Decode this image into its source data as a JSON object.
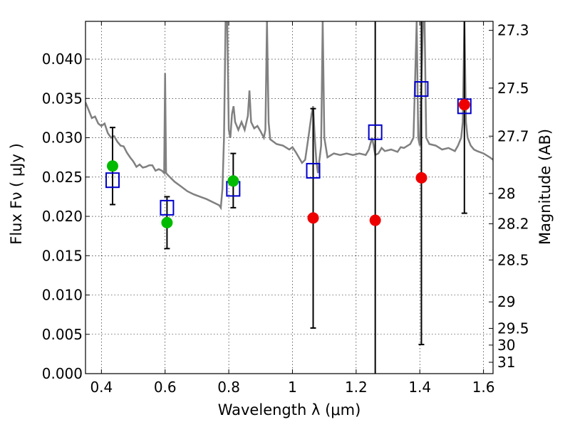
{
  "chart_data": {
    "type": "scatter",
    "xlabel": "Wavelength  λ (μm)",
    "ylabel": "Flux  Fν  ( μJy )",
    "y2label": "Magnitude (AB)",
    "xlim": [
      0.35,
      1.63
    ],
    "ylim": [
      0.0,
      0.0448
    ],
    "grid": true,
    "x_ticks": [
      {
        "value": 0.4,
        "label": "0.4"
      },
      {
        "value": 0.6,
        "label": "0.6"
      },
      {
        "value": 0.8,
        "label": "0.8"
      },
      {
        "value": 1.0,
        "label": "1"
      },
      {
        "value": 1.2,
        "label": "1.2"
      },
      {
        "value": 1.4,
        "label": "1.4"
      },
      {
        "value": 1.6,
        "label": "1.6"
      }
    ],
    "y_ticks": [
      {
        "value": 0.0,
        "label": "0.000"
      },
      {
        "value": 0.005,
        "label": "0.005"
      },
      {
        "value": 0.01,
        "label": "0.010"
      },
      {
        "value": 0.015,
        "label": "0.015"
      },
      {
        "value": 0.02,
        "label": "0.020"
      },
      {
        "value": 0.025,
        "label": "0.025"
      },
      {
        "value": 0.03,
        "label": "0.030"
      },
      {
        "value": 0.035,
        "label": "0.035"
      },
      {
        "value": 0.04,
        "label": "0.040"
      }
    ],
    "y2_ticks": [
      {
        "value": 27.3,
        "label": "27.3"
      },
      {
        "value": 27.5,
        "label": "27.5"
      },
      {
        "value": 27.7,
        "label": "27.7"
      },
      {
        "value": 28,
        "label": "28"
      },
      {
        "value": 28.2,
        "label": "28.2"
      },
      {
        "value": 28.5,
        "label": "28.5"
      },
      {
        "value": 29,
        "label": "29"
      },
      {
        "value": 29.5,
        "label": "29.5"
      },
      {
        "value": 30,
        "label": "30"
      },
      {
        "value": 31,
        "label": "31"
      }
    ],
    "colors": {
      "spectrum": "#808080",
      "model": "#0000cc",
      "observed_optical": "#00bb00",
      "observed_nir": "#ee0000",
      "errorbar": "#000000"
    },
    "series": [
      {
        "kind": "line",
        "points": [
          [
            0.35,
            0.0345
          ],
          [
            0.36,
            0.0335
          ],
          [
            0.37,
            0.0325
          ],
          [
            0.38,
            0.0327
          ],
          [
            0.39,
            0.0318
          ],
          [
            0.4,
            0.0315
          ],
          [
            0.41,
            0.0318
          ],
          [
            0.42,
            0.0306
          ],
          [
            0.43,
            0.03
          ],
          [
            0.44,
            0.0302
          ],
          [
            0.45,
            0.0295
          ],
          [
            0.46,
            0.029
          ],
          [
            0.47,
            0.0289
          ],
          [
            0.48,
            0.0281
          ],
          [
            0.49,
            0.0275
          ],
          [
            0.5,
            0.027
          ],
          [
            0.51,
            0.0263
          ],
          [
            0.52,
            0.0266
          ],
          [
            0.53,
            0.0262
          ],
          [
            0.54,
            0.0263
          ],
          [
            0.55,
            0.0265
          ],
          [
            0.56,
            0.0265
          ],
          [
            0.57,
            0.0258
          ],
          [
            0.58,
            0.026
          ],
          [
            0.59,
            0.0258
          ],
          [
            0.597,
            0.0255
          ],
          [
            0.6,
            0.0382
          ],
          [
            0.603,
            0.0255
          ],
          [
            0.61,
            0.0252
          ],
          [
            0.63,
            0.0244
          ],
          [
            0.65,
            0.0238
          ],
          [
            0.67,
            0.0232
          ],
          [
            0.69,
            0.0228
          ],
          [
            0.71,
            0.0225
          ],
          [
            0.73,
            0.0222
          ],
          [
            0.75,
            0.0218
          ],
          [
            0.76,
            0.0216
          ],
          [
            0.77,
            0.0214
          ],
          [
            0.775,
            0.0211
          ],
          [
            0.78,
            0.0235
          ],
          [
            0.785,
            0.03
          ],
          [
            0.79,
            0.0448
          ],
          [
            0.795,
            0.0448
          ],
          [
            0.8,
            0.031
          ],
          [
            0.805,
            0.03
          ],
          [
            0.81,
            0.033
          ],
          [
            0.815,
            0.034
          ],
          [
            0.82,
            0.032
          ],
          [
            0.83,
            0.031
          ],
          [
            0.84,
            0.032
          ],
          [
            0.85,
            0.031
          ],
          [
            0.86,
            0.0328
          ],
          [
            0.865,
            0.036
          ],
          [
            0.87,
            0.032
          ],
          [
            0.88,
            0.0312
          ],
          [
            0.89,
            0.0315
          ],
          [
            0.9,
            0.0308
          ],
          [
            0.91,
            0.03
          ],
          [
            0.915,
            0.031
          ],
          [
            0.92,
            0.0448
          ],
          [
            0.925,
            0.032
          ],
          [
            0.93,
            0.0298
          ],
          [
            0.95,
            0.0292
          ],
          [
            0.97,
            0.029
          ],
          [
            0.99,
            0.0285
          ],
          [
            1.0,
            0.0288
          ],
          [
            1.01,
            0.0282
          ],
          [
            1.02,
            0.0275
          ],
          [
            1.03,
            0.0268
          ],
          [
            1.04,
            0.0272
          ],
          [
            1.05,
            0.03
          ],
          [
            1.06,
            0.033
          ],
          [
            1.065,
            0.034
          ],
          [
            1.07,
            0.03
          ],
          [
            1.075,
            0.027
          ],
          [
            1.08,
            0.0255
          ],
          [
            1.09,
            0.029
          ],
          [
            1.095,
            0.0448
          ],
          [
            1.1,
            0.03
          ],
          [
            1.11,
            0.0275
          ],
          [
            1.13,
            0.028
          ],
          [
            1.15,
            0.0278
          ],
          [
            1.17,
            0.028
          ],
          [
            1.19,
            0.0278
          ],
          [
            1.21,
            0.028
          ],
          [
            1.23,
            0.0278
          ],
          [
            1.24,
            0.0285
          ],
          [
            1.25,
            0.03
          ],
          [
            1.255,
            0.029
          ],
          [
            1.26,
            0.0278
          ],
          [
            1.27,
            0.028
          ],
          [
            1.28,
            0.0287
          ],
          [
            1.29,
            0.0283
          ],
          [
            1.31,
            0.0285
          ],
          [
            1.33,
            0.0282
          ],
          [
            1.34,
            0.0288
          ],
          [
            1.35,
            0.0287
          ],
          [
            1.37,
            0.0292
          ],
          [
            1.38,
            0.03
          ],
          [
            1.385,
            0.037
          ],
          [
            1.39,
            0.0448
          ],
          [
            1.395,
            0.03
          ],
          [
            1.4,
            0.029
          ],
          [
            1.41,
            0.0448
          ],
          [
            1.415,
            0.0448
          ],
          [
            1.42,
            0.03
          ],
          [
            1.43,
            0.0292
          ],
          [
            1.45,
            0.029
          ],
          [
            1.47,
            0.0285
          ],
          [
            1.49,
            0.0287
          ],
          [
            1.51,
            0.0283
          ],
          [
            1.52,
            0.029
          ],
          [
            1.53,
            0.03
          ],
          [
            1.535,
            0.032
          ],
          [
            1.54,
            0.0448
          ],
          [
            1.545,
            0.032
          ],
          [
            1.55,
            0.03
          ],
          [
            1.56,
            0.029
          ],
          [
            1.57,
            0.0285
          ],
          [
            1.58,
            0.0283
          ],
          [
            1.6,
            0.028
          ],
          [
            1.62,
            0.0275
          ],
          [
            1.63,
            0.0272
          ]
        ]
      },
      {
        "kind": "model-squares",
        "points": [
          [
            0.435,
            0.0246
          ],
          [
            0.606,
            0.0211
          ],
          [
            0.814,
            0.0235
          ],
          [
            1.065,
            0.0258
          ],
          [
            1.26,
            0.0307
          ],
          [
            1.405,
            0.0362
          ],
          [
            1.54,
            0.034
          ]
        ]
      },
      {
        "kind": "observed-points-optical",
        "points": [
          [
            0.435,
            0.0264
          ],
          [
            0.606,
            0.0192
          ],
          [
            0.814,
            0.0245
          ]
        ]
      },
      {
        "kind": "observed-points-nir",
        "points": [
          [
            1.065,
            0.0198
          ],
          [
            1.26,
            0.0195
          ],
          [
            1.405,
            0.0249
          ],
          [
            1.54,
            0.0342
          ]
        ]
      }
    ],
    "errorbars": [
      {
        "x": 0.435,
        "low": 0.0215,
        "high": 0.0313
      },
      {
        "x": 0.606,
        "low": 0.0159,
        "high": 0.0225
      },
      {
        "x": 0.814,
        "low": 0.0211,
        "high": 0.028
      },
      {
        "x": 1.065,
        "low": 0.0058,
        "high": 0.0337
      },
      {
        "x": 1.26,
        "low": 0.0,
        "high": 0.0448
      },
      {
        "x": 1.405,
        "low": 0.0037,
        "high": 0.0448
      },
      {
        "x": 1.54,
        "low": 0.0204,
        "high": 0.0448
      }
    ]
  }
}
